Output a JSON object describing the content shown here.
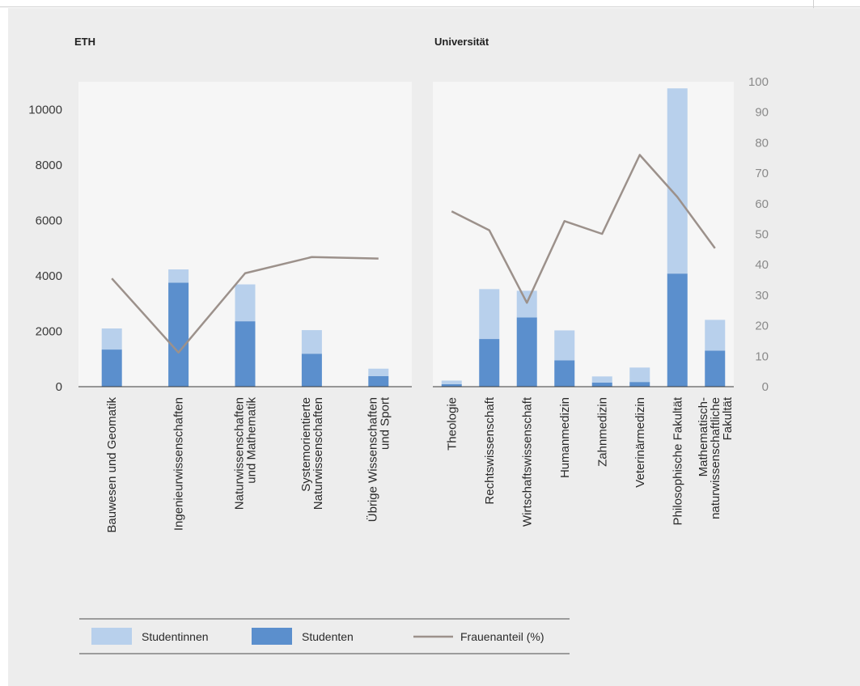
{
  "chart_data": [
    {
      "type": "bar",
      "title": "ETH",
      "stacked": true,
      "categories": [
        [
          "Bauwesen und Geomatik"
        ],
        [
          "Ingenieurwissenschaften"
        ],
        [
          "Naturwissenschaften",
          "und Mathematik"
        ],
        [
          "Systemorientierte",
          "Naturwissenschaften"
        ],
        [
          "Übrige Wissenschaften",
          "und Sport"
        ]
      ],
      "series": [
        {
          "name": "Studenten",
          "type": "bar",
          "color": "#5b8fcd",
          "values": [
            1340,
            3750,
            2360,
            1190,
            380
          ]
        },
        {
          "name": "Studentinnen",
          "type": "bar",
          "color": "#b8d0ec",
          "values": [
            760,
            480,
            1330,
            850,
            270
          ]
        },
        {
          "name": "Frauenanteil (%)",
          "type": "line",
          "axis": "right",
          "color": "#9c918b",
          "values": [
            35.5,
            11.2,
            37.2,
            42.5,
            42
          ]
        }
      ],
      "ylim": [
        0,
        11000
      ],
      "y_ticks": [
        "0",
        "2000",
        "4000",
        "6000",
        "8000",
        "10000"
      ]
    },
    {
      "type": "bar",
      "title": "Universität",
      "stacked": true,
      "categories": [
        [
          "Theologie"
        ],
        [
          "Rechtswissenschaft"
        ],
        [
          "Wirtschaftswissenschaft"
        ],
        [
          "Humanmedizin"
        ],
        [
          "Zahnmedizin"
        ],
        [
          "Veterinärmedizin"
        ],
        [
          "Philosophische Fakultät"
        ],
        [
          "Mathematisch-",
          "naturwissenschaftliche",
          "Fakultät"
        ]
      ],
      "series": [
        {
          "name": "Studenten",
          "type": "bar",
          "color": "#5b8fcd",
          "values": [
            90,
            1720,
            2500,
            950,
            150,
            170,
            4080,
            1300
          ]
        },
        {
          "name": "Studentinnen",
          "type": "bar",
          "color": "#b8d0ec",
          "values": [
            130,
            1800,
            960,
            1080,
            220,
            520,
            6680,
            1110
          ]
        },
        {
          "name": "Frauenanteil (%)",
          "type": "line",
          "axis": "right",
          "color": "#9c918b",
          "values": [
            57.5,
            51.3,
            27.5,
            54.3,
            50.1,
            76,
            62.2,
            45.4
          ]
        }
      ],
      "ylim": [
        0,
        11000
      ],
      "y2lim": [
        0,
        100
      ],
      "y2_ticks": [
        "0",
        "10",
        "20",
        "30",
        "40",
        "50",
        "60",
        "70",
        "80",
        "90",
        "100"
      ]
    }
  ],
  "legend": {
    "items": [
      {
        "label": "Studentinnen",
        "kind": "swatch",
        "color": "#b8d0ec"
      },
      {
        "label": "Studenten",
        "kind": "swatch",
        "color": "#5b8fcd"
      },
      {
        "label": "Frauenanteil (%)",
        "kind": "line",
        "color": "#9c918b"
      }
    ]
  }
}
